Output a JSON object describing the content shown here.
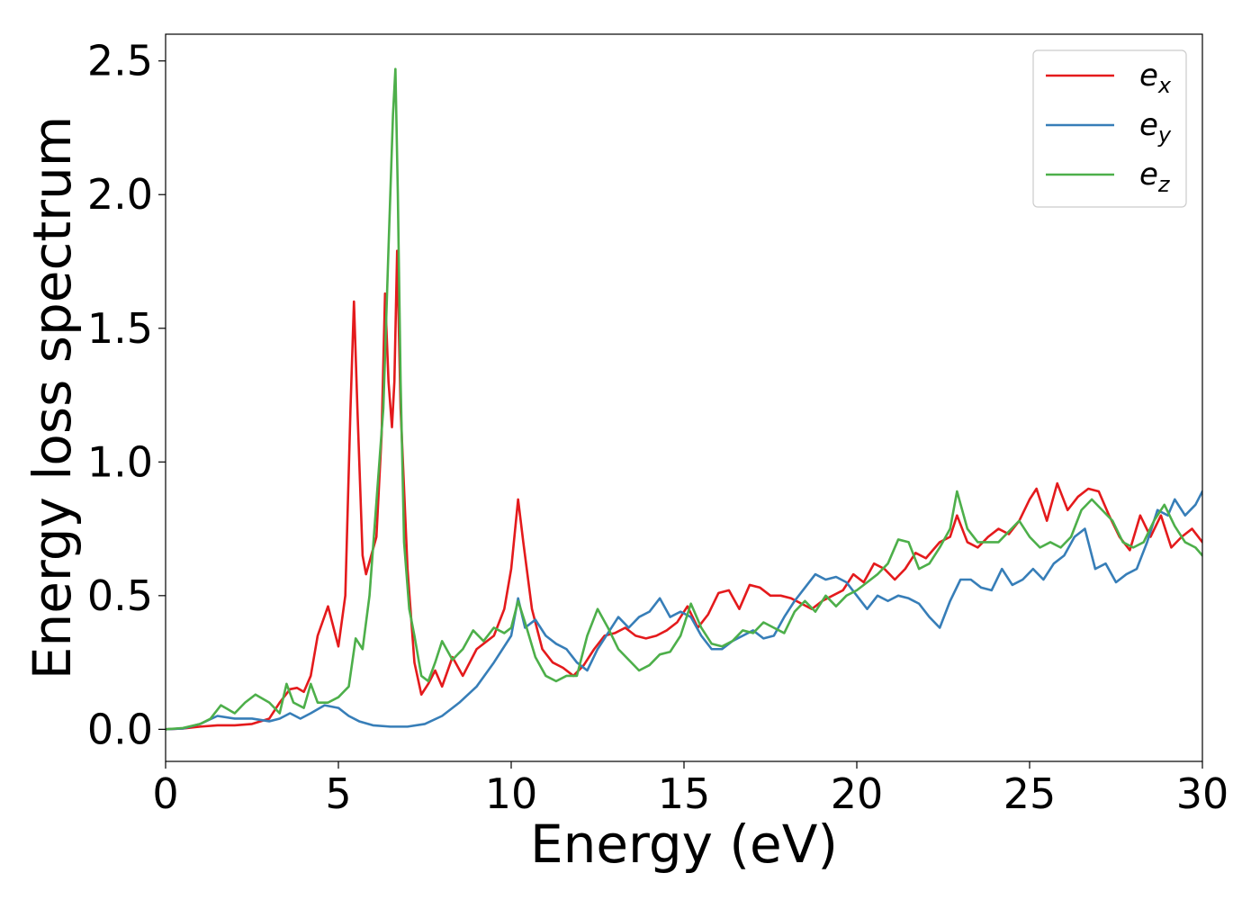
{
  "chart_data": {
    "type": "line",
    "xlabel": "Energy (eV)",
    "ylabel": "Energy loss spectrum",
    "xlim": [
      0,
      30
    ],
    "ylim": [
      -0.12,
      2.6
    ],
    "xticks": [
      0,
      5,
      10,
      15,
      20,
      25,
      30
    ],
    "xtick_labels": [
      "0",
      "5",
      "10",
      "15",
      "20",
      "25",
      "30"
    ],
    "yticks": [
      0.0,
      0.5,
      1.0,
      1.5,
      2.0,
      2.5
    ],
    "ytick_labels": [
      "0.0",
      "0.5",
      "1.0",
      "1.5",
      "2.0",
      "2.5"
    ],
    "grid": false,
    "legend_position": "top-right",
    "series": [
      {
        "name": "e",
        "name_sub": "x",
        "color": "#e41a1c",
        "points": [
          [
            0,
            0
          ],
          [
            0.5,
            0.003
          ],
          [
            1,
            0.01
          ],
          [
            1.5,
            0.015
          ],
          [
            2,
            0.015
          ],
          [
            2.5,
            0.02
          ],
          [
            3,
            0.04
          ],
          [
            3.3,
            0.1
          ],
          [
            3.6,
            0.15
          ],
          [
            3.8,
            0.155
          ],
          [
            4,
            0.14
          ],
          [
            4.2,
            0.2
          ],
          [
            4.4,
            0.35
          ],
          [
            4.7,
            0.46
          ],
          [
            5.0,
            0.31
          ],
          [
            5.2,
            0.5
          ],
          [
            5.35,
            1.2
          ],
          [
            5.45,
            1.6
          ],
          [
            5.55,
            1.2
          ],
          [
            5.7,
            0.65
          ],
          [
            5.8,
            0.58
          ],
          [
            5.95,
            0.65
          ],
          [
            6.1,
            0.72
          ],
          [
            6.25,
            1.1
          ],
          [
            6.35,
            1.63
          ],
          [
            6.45,
            1.3
          ],
          [
            6.55,
            1.13
          ],
          [
            6.62,
            1.3
          ],
          [
            6.7,
            1.79
          ],
          [
            6.8,
            1.2
          ],
          [
            7.0,
            0.6
          ],
          [
            7.2,
            0.25
          ],
          [
            7.4,
            0.13
          ],
          [
            7.6,
            0.17
          ],
          [
            7.8,
            0.22
          ],
          [
            8.0,
            0.16
          ],
          [
            8.3,
            0.27
          ],
          [
            8.6,
            0.2
          ],
          [
            9.0,
            0.3
          ],
          [
            9.5,
            0.35
          ],
          [
            9.8,
            0.45
          ],
          [
            10.0,
            0.6
          ],
          [
            10.2,
            0.86
          ],
          [
            10.35,
            0.7
          ],
          [
            10.6,
            0.45
          ],
          [
            10.9,
            0.3
          ],
          [
            11.2,
            0.25
          ],
          [
            11.5,
            0.23
          ],
          [
            11.8,
            0.2
          ],
          [
            12.1,
            0.24
          ],
          [
            12.4,
            0.3
          ],
          [
            12.7,
            0.35
          ],
          [
            13.0,
            0.36
          ],
          [
            13.3,
            0.38
          ],
          [
            13.6,
            0.35
          ],
          [
            13.9,
            0.34
          ],
          [
            14.2,
            0.35
          ],
          [
            14.5,
            0.37
          ],
          [
            14.8,
            0.4
          ],
          [
            15.1,
            0.46
          ],
          [
            15.4,
            0.38
          ],
          [
            15.7,
            0.43
          ],
          [
            16.0,
            0.51
          ],
          [
            16.3,
            0.52
          ],
          [
            16.6,
            0.45
          ],
          [
            16.9,
            0.54
          ],
          [
            17.2,
            0.53
          ],
          [
            17.5,
            0.5
          ],
          [
            17.8,
            0.5
          ],
          [
            18.1,
            0.49
          ],
          [
            18.4,
            0.47
          ],
          [
            18.7,
            0.45
          ],
          [
            19.0,
            0.48
          ],
          [
            19.3,
            0.5
          ],
          [
            19.6,
            0.52
          ],
          [
            19.9,
            0.58
          ],
          [
            20.2,
            0.55
          ],
          [
            20.5,
            0.62
          ],
          [
            20.8,
            0.6
          ],
          [
            21.1,
            0.56
          ],
          [
            21.4,
            0.6
          ],
          [
            21.7,
            0.66
          ],
          [
            22.0,
            0.64
          ],
          [
            22.4,
            0.7
          ],
          [
            22.7,
            0.72
          ],
          [
            22.9,
            0.8
          ],
          [
            23.2,
            0.7
          ],
          [
            23.5,
            0.68
          ],
          [
            23.8,
            0.72
          ],
          [
            24.1,
            0.75
          ],
          [
            24.4,
            0.73
          ],
          [
            24.7,
            0.78
          ],
          [
            25.0,
            0.86
          ],
          [
            25.2,
            0.9
          ],
          [
            25.5,
            0.78
          ],
          [
            25.8,
            0.92
          ],
          [
            26.1,
            0.82
          ],
          [
            26.4,
            0.87
          ],
          [
            26.7,
            0.9
          ],
          [
            27.0,
            0.89
          ],
          [
            27.3,
            0.8
          ],
          [
            27.6,
            0.72
          ],
          [
            27.9,
            0.67
          ],
          [
            28.2,
            0.8
          ],
          [
            28.5,
            0.72
          ],
          [
            28.8,
            0.8
          ],
          [
            29.1,
            0.68
          ],
          [
            29.4,
            0.72
          ],
          [
            29.7,
            0.75
          ],
          [
            30,
            0.7
          ]
        ]
      },
      {
        "name": "e",
        "name_sub": "y",
        "color": "#377eb8",
        "points": [
          [
            0,
            0
          ],
          [
            0.5,
            0.003
          ],
          [
            1,
            0.02
          ],
          [
            1.5,
            0.05
          ],
          [
            2,
            0.04
          ],
          [
            2.5,
            0.04
          ],
          [
            3,
            0.03
          ],
          [
            3.3,
            0.04
          ],
          [
            3.6,
            0.06
          ],
          [
            3.9,
            0.04
          ],
          [
            4.2,
            0.06
          ],
          [
            4.6,
            0.09
          ],
          [
            5.0,
            0.08
          ],
          [
            5.3,
            0.05
          ],
          [
            5.6,
            0.03
          ],
          [
            6.0,
            0.015
          ],
          [
            6.5,
            0.01
          ],
          [
            7.0,
            0.01
          ],
          [
            7.5,
            0.02
          ],
          [
            8.0,
            0.05
          ],
          [
            8.5,
            0.1
          ],
          [
            9.0,
            0.16
          ],
          [
            9.5,
            0.25
          ],
          [
            10.0,
            0.35
          ],
          [
            10.2,
            0.49
          ],
          [
            10.4,
            0.38
          ],
          [
            10.7,
            0.41
          ],
          [
            11.0,
            0.35
          ],
          [
            11.3,
            0.32
          ],
          [
            11.6,
            0.3
          ],
          [
            11.9,
            0.25
          ],
          [
            12.2,
            0.22
          ],
          [
            12.5,
            0.3
          ],
          [
            12.8,
            0.36
          ],
          [
            13.1,
            0.42
          ],
          [
            13.4,
            0.38
          ],
          [
            13.7,
            0.42
          ],
          [
            14.0,
            0.44
          ],
          [
            14.3,
            0.49
          ],
          [
            14.6,
            0.42
          ],
          [
            14.9,
            0.44
          ],
          [
            15.2,
            0.42
          ],
          [
            15.5,
            0.35
          ],
          [
            15.8,
            0.3
          ],
          [
            16.1,
            0.3
          ],
          [
            16.4,
            0.33
          ],
          [
            16.7,
            0.35
          ],
          [
            17.0,
            0.37
          ],
          [
            17.3,
            0.34
          ],
          [
            17.6,
            0.35
          ],
          [
            17.9,
            0.42
          ],
          [
            18.2,
            0.48
          ],
          [
            18.5,
            0.53
          ],
          [
            18.8,
            0.58
          ],
          [
            19.1,
            0.56
          ],
          [
            19.4,
            0.57
          ],
          [
            19.7,
            0.55
          ],
          [
            20.0,
            0.5
          ],
          [
            20.3,
            0.45
          ],
          [
            20.6,
            0.5
          ],
          [
            20.9,
            0.48
          ],
          [
            21.2,
            0.5
          ],
          [
            21.5,
            0.49
          ],
          [
            21.8,
            0.47
          ],
          [
            22.1,
            0.42
          ],
          [
            22.4,
            0.38
          ],
          [
            22.7,
            0.48
          ],
          [
            23.0,
            0.56
          ],
          [
            23.3,
            0.56
          ],
          [
            23.6,
            0.53
          ],
          [
            23.9,
            0.52
          ],
          [
            24.2,
            0.6
          ],
          [
            24.5,
            0.54
          ],
          [
            24.8,
            0.56
          ],
          [
            25.1,
            0.6
          ],
          [
            25.4,
            0.56
          ],
          [
            25.7,
            0.62
          ],
          [
            26.0,
            0.65
          ],
          [
            26.3,
            0.72
          ],
          [
            26.6,
            0.75
          ],
          [
            26.9,
            0.6
          ],
          [
            27.2,
            0.62
          ],
          [
            27.5,
            0.55
          ],
          [
            27.8,
            0.58
          ],
          [
            28.1,
            0.6
          ],
          [
            28.4,
            0.7
          ],
          [
            28.7,
            0.82
          ],
          [
            29.0,
            0.8
          ],
          [
            29.2,
            0.86
          ],
          [
            29.5,
            0.8
          ],
          [
            29.8,
            0.84
          ],
          [
            30,
            0.89
          ]
        ]
      },
      {
        "name": "e",
        "name_sub": "z",
        "color": "#4daf4a",
        "points": [
          [
            0,
            0
          ],
          [
            0.5,
            0.005
          ],
          [
            1,
            0.02
          ],
          [
            1.3,
            0.04
          ],
          [
            1.6,
            0.09
          ],
          [
            2.0,
            0.06
          ],
          [
            2.3,
            0.1
          ],
          [
            2.6,
            0.13
          ],
          [
            3.0,
            0.1
          ],
          [
            3.3,
            0.06
          ],
          [
            3.5,
            0.17
          ],
          [
            3.7,
            0.1
          ],
          [
            4.0,
            0.08
          ],
          [
            4.2,
            0.17
          ],
          [
            4.4,
            0.1
          ],
          [
            4.7,
            0.1
          ],
          [
            5.0,
            0.12
          ],
          [
            5.3,
            0.16
          ],
          [
            5.5,
            0.34
          ],
          [
            5.7,
            0.3
          ],
          [
            5.9,
            0.5
          ],
          [
            6.1,
            0.85
          ],
          [
            6.3,
            1.2
          ],
          [
            6.45,
            1.8
          ],
          [
            6.58,
            2.3
          ],
          [
            6.65,
            2.47
          ],
          [
            6.72,
            2.0
          ],
          [
            6.8,
            1.3
          ],
          [
            6.9,
            0.7
          ],
          [
            7.05,
            0.45
          ],
          [
            7.2,
            0.35
          ],
          [
            7.4,
            0.2
          ],
          [
            7.6,
            0.18
          ],
          [
            7.8,
            0.25
          ],
          [
            8.0,
            0.33
          ],
          [
            8.3,
            0.26
          ],
          [
            8.6,
            0.3
          ],
          [
            8.9,
            0.37
          ],
          [
            9.2,
            0.33
          ],
          [
            9.5,
            0.38
          ],
          [
            9.8,
            0.36
          ],
          [
            10.0,
            0.38
          ],
          [
            10.2,
            0.48
          ],
          [
            10.4,
            0.4
          ],
          [
            10.7,
            0.27
          ],
          [
            11.0,
            0.2
          ],
          [
            11.3,
            0.18
          ],
          [
            11.6,
            0.2
          ],
          [
            11.9,
            0.2
          ],
          [
            12.2,
            0.35
          ],
          [
            12.5,
            0.45
          ],
          [
            12.8,
            0.38
          ],
          [
            13.1,
            0.3
          ],
          [
            13.4,
            0.26
          ],
          [
            13.7,
            0.22
          ],
          [
            14.0,
            0.24
          ],
          [
            14.3,
            0.28
          ],
          [
            14.6,
            0.29
          ],
          [
            14.9,
            0.35
          ],
          [
            15.2,
            0.47
          ],
          [
            15.5,
            0.38
          ],
          [
            15.8,
            0.32
          ],
          [
            16.1,
            0.31
          ],
          [
            16.4,
            0.33
          ],
          [
            16.7,
            0.37
          ],
          [
            17.0,
            0.36
          ],
          [
            17.3,
            0.4
          ],
          [
            17.6,
            0.38
          ],
          [
            17.9,
            0.36
          ],
          [
            18.2,
            0.44
          ],
          [
            18.5,
            0.48
          ],
          [
            18.8,
            0.44
          ],
          [
            19.1,
            0.5
          ],
          [
            19.4,
            0.46
          ],
          [
            19.7,
            0.5
          ],
          [
            20.0,
            0.52
          ],
          [
            20.3,
            0.55
          ],
          [
            20.6,
            0.58
          ],
          [
            20.9,
            0.62
          ],
          [
            21.2,
            0.71
          ],
          [
            21.5,
            0.7
          ],
          [
            21.8,
            0.6
          ],
          [
            22.1,
            0.62
          ],
          [
            22.4,
            0.68
          ],
          [
            22.7,
            0.75
          ],
          [
            22.9,
            0.89
          ],
          [
            23.2,
            0.75
          ],
          [
            23.5,
            0.7
          ],
          [
            23.8,
            0.7
          ],
          [
            24.1,
            0.7
          ],
          [
            24.4,
            0.74
          ],
          [
            24.7,
            0.78
          ],
          [
            25.0,
            0.72
          ],
          [
            25.3,
            0.68
          ],
          [
            25.6,
            0.7
          ],
          [
            25.9,
            0.68
          ],
          [
            26.2,
            0.72
          ],
          [
            26.5,
            0.82
          ],
          [
            26.8,
            0.86
          ],
          [
            27.1,
            0.82
          ],
          [
            27.4,
            0.78
          ],
          [
            27.7,
            0.7
          ],
          [
            28.0,
            0.68
          ],
          [
            28.3,
            0.7
          ],
          [
            28.6,
            0.78
          ],
          [
            28.9,
            0.84
          ],
          [
            29.2,
            0.76
          ],
          [
            29.5,
            0.7
          ],
          [
            29.8,
            0.68
          ],
          [
            30,
            0.65
          ]
        ]
      }
    ]
  }
}
